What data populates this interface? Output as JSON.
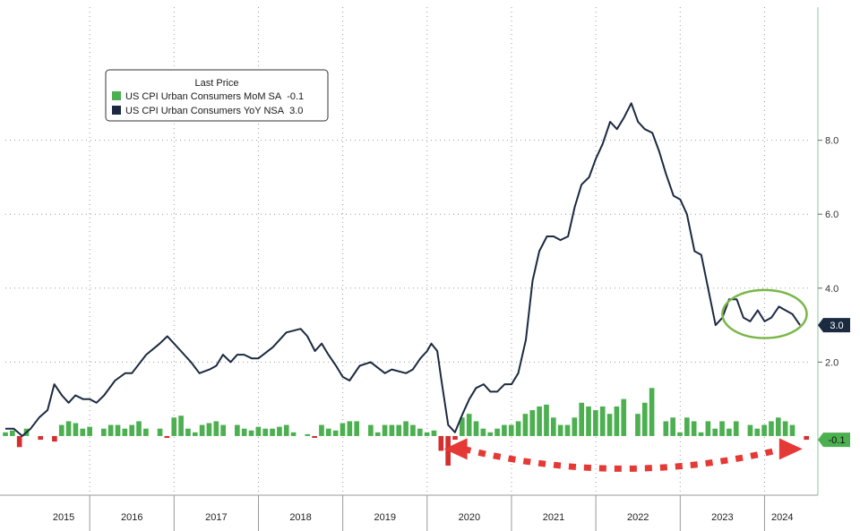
{
  "chart_data": {
    "type": "bar+line",
    "legend": {
      "title": "Last Price",
      "entries": [
        {
          "label": "US CPI Urban Consumers MoM SA",
          "value": "-0.1",
          "color": "#4caf50"
        },
        {
          "label": "US CPI Urban Consumers YoY NSA",
          "value": "3.0",
          "color": "#1b2a41"
        }
      ]
    },
    "y_axis": {
      "ticks": [
        "2.0",
        "4.0",
        "6.0",
        "8.0"
      ],
      "tick_values": [
        2,
        4,
        6,
        8
      ],
      "ylim": [
        -1.6,
        11.6
      ]
    },
    "x_axis": {
      "years": [
        "2015",
        "2016",
        "2017",
        "2018",
        "2019",
        "2020",
        "2021",
        "2022",
        "2023",
        "2024"
      ],
      "xlim": [
        2015.0,
        2024.42
      ]
    },
    "series": [
      {
        "name": "US CPI Urban Consumers YoY NSA",
        "kind": "line",
        "points": [
          [
            2015.0,
            0.2
          ],
          [
            2015.1,
            0.2
          ],
          [
            2015.2,
            0.0
          ],
          [
            2015.3,
            0.2
          ],
          [
            2015.4,
            0.5
          ],
          [
            2015.5,
            0.7
          ],
          [
            2015.58,
            1.4
          ],
          [
            2015.67,
            1.1
          ],
          [
            2015.75,
            0.9
          ],
          [
            2015.83,
            1.1
          ],
          [
            2015.92,
            1.0
          ],
          [
            2016.0,
            1.0
          ],
          [
            2016.08,
            0.9
          ],
          [
            2016.17,
            1.1
          ],
          [
            2016.3,
            1.5
          ],
          [
            2016.42,
            1.7
          ],
          [
            2016.5,
            1.7
          ],
          [
            2016.67,
            2.2
          ],
          [
            2016.83,
            2.5
          ],
          [
            2016.92,
            2.7
          ],
          [
            2017.0,
            2.5
          ],
          [
            2017.08,
            2.3
          ],
          [
            2017.2,
            2.0
          ],
          [
            2017.3,
            1.7
          ],
          [
            2017.42,
            1.8
          ],
          [
            2017.5,
            1.9
          ],
          [
            2017.58,
            2.2
          ],
          [
            2017.67,
            2.0
          ],
          [
            2017.75,
            2.2
          ],
          [
            2017.83,
            2.2
          ],
          [
            2017.92,
            2.1
          ],
          [
            2018.0,
            2.1
          ],
          [
            2018.17,
            2.4
          ],
          [
            2018.33,
            2.8
          ],
          [
            2018.5,
            2.9
          ],
          [
            2018.58,
            2.7
          ],
          [
            2018.67,
            2.3
          ],
          [
            2018.75,
            2.5
          ],
          [
            2018.83,
            2.2
          ],
          [
            2018.92,
            1.9
          ],
          [
            2019.0,
            1.6
          ],
          [
            2019.08,
            1.5
          ],
          [
            2019.2,
            1.9
          ],
          [
            2019.33,
            2.0
          ],
          [
            2019.5,
            1.7
          ],
          [
            2019.58,
            1.8
          ],
          [
            2019.75,
            1.7
          ],
          [
            2019.83,
            1.8
          ],
          [
            2019.92,
            2.1
          ],
          [
            2020.0,
            2.3
          ],
          [
            2020.05,
            2.5
          ],
          [
            2020.12,
            2.3
          ],
          [
            2020.17,
            1.5
          ],
          [
            2020.25,
            0.3
          ],
          [
            2020.33,
            0.1
          ],
          [
            2020.42,
            0.6
          ],
          [
            2020.5,
            1.0
          ],
          [
            2020.58,
            1.3
          ],
          [
            2020.67,
            1.4
          ],
          [
            2020.75,
            1.2
          ],
          [
            2020.83,
            1.2
          ],
          [
            2020.92,
            1.4
          ],
          [
            2021.0,
            1.4
          ],
          [
            2021.08,
            1.7
          ],
          [
            2021.17,
            2.6
          ],
          [
            2021.25,
            4.2
          ],
          [
            2021.33,
            5.0
          ],
          [
            2021.42,
            5.4
          ],
          [
            2021.5,
            5.4
          ],
          [
            2021.58,
            5.3
          ],
          [
            2021.67,
            5.4
          ],
          [
            2021.75,
            6.2
          ],
          [
            2021.83,
            6.8
          ],
          [
            2021.92,
            7.0
          ],
          [
            2022.0,
            7.5
          ],
          [
            2022.08,
            7.9
          ],
          [
            2022.17,
            8.5
          ],
          [
            2022.25,
            8.3
          ],
          [
            2022.33,
            8.6
          ],
          [
            2022.42,
            9.0
          ],
          [
            2022.5,
            8.5
          ],
          [
            2022.58,
            8.3
          ],
          [
            2022.67,
            8.2
          ],
          [
            2022.75,
            7.7
          ],
          [
            2022.83,
            7.1
          ],
          [
            2022.92,
            6.5
          ],
          [
            2023.0,
            6.4
          ],
          [
            2023.08,
            6.0
          ],
          [
            2023.17,
            5.0
          ],
          [
            2023.25,
            4.9
          ],
          [
            2023.33,
            4.0
          ],
          [
            2023.42,
            3.0
          ],
          [
            2023.5,
            3.2
          ],
          [
            2023.58,
            3.7
          ],
          [
            2023.67,
            3.7
          ],
          [
            2023.75,
            3.2
          ],
          [
            2023.83,
            3.1
          ],
          [
            2023.92,
            3.4
          ],
          [
            2024.0,
            3.1
          ],
          [
            2024.08,
            3.2
          ],
          [
            2024.17,
            3.5
          ],
          [
            2024.25,
            3.4
          ],
          [
            2024.33,
            3.3
          ],
          [
            2024.42,
            3.0
          ]
        ]
      },
      {
        "name": "US CPI Urban Consumers MoM SA",
        "kind": "bar",
        "start": 2015.0,
        "step": 0.0833,
        "values": [
          0.1,
          0.15,
          -0.3,
          0.2,
          0.0,
          -0.1,
          0.0,
          -0.15,
          0.3,
          0.4,
          0.35,
          0.2,
          0.25,
          0.0,
          0.2,
          0.3,
          0.3,
          0.2,
          0.3,
          0.4,
          0.2,
          0.0,
          0.2,
          -0.05,
          0.5,
          0.55,
          0.2,
          0.1,
          0.3,
          0.35,
          0.4,
          0.3,
          0.0,
          0.3,
          0.2,
          0.15,
          0.25,
          0.2,
          0.2,
          0.25,
          0.3,
          0.1,
          0.0,
          0.05,
          -0.05,
          0.3,
          0.2,
          0.15,
          0.35,
          0.4,
          0.4,
          0.0,
          0.3,
          0.1,
          0.3,
          0.3,
          0.3,
          0.4,
          0.3,
          0.2,
          0.1,
          0.15,
          -0.4,
          -0.8,
          -0.1,
          0.5,
          0.6,
          0.4,
          0.2,
          0.1,
          0.2,
          0.3,
          0.3,
          0.4,
          0.6,
          0.7,
          0.8,
          0.85,
          0.5,
          0.3,
          0.3,
          0.5,
          0.9,
          0.8,
          0.7,
          0.8,
          0.6,
          0.8,
          1.0,
          0.0,
          0.6,
          0.9,
          1.3,
          0.0,
          0.4,
          0.5,
          0.1,
          0.5,
          0.4,
          0.1,
          0.4,
          0.2,
          0.4,
          0.2,
          0.4,
          0.0,
          0.3,
          0.2,
          0.3,
          0.4,
          0.5,
          0.4,
          0.3,
          0.0,
          -0.1
        ]
      }
    ],
    "annotations": {
      "tags": [
        {
          "value": "3.0",
          "at": 3.0,
          "background": "#1b2a41",
          "color": "#ffffff"
        },
        {
          "value": "-0.1",
          "at": -0.1,
          "background": "#4caf50",
          "color": "#111111"
        }
      ],
      "highlight_ellipse": {
        "x_center": 2024.0,
        "y_center": 3.3,
        "x_radius": 0.5,
        "y_radius": 0.65,
        "color": "#7ab648"
      },
      "dashed_arrow": {
        "from_x": 2020.2,
        "to_x": 2024.45,
        "y": -0.35,
        "color": "#e53935"
      }
    },
    "grid": "dotted",
    "colors": {
      "bar_positive": "#4caf50",
      "bar_negative": "#d32f2f",
      "line": "#1b2a41",
      "axis_rule": "#8fc79a"
    }
  }
}
